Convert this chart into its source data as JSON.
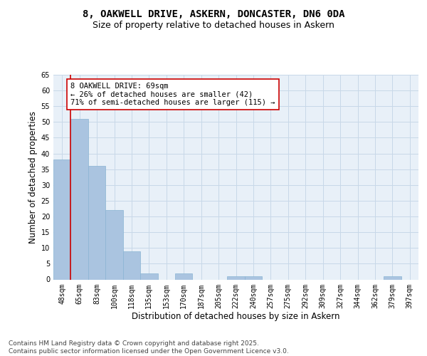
{
  "title_line1": "8, OAKWELL DRIVE, ASKERN, DONCASTER, DN6 0DA",
  "title_line2": "Size of property relative to detached houses in Askern",
  "xlabel": "Distribution of detached houses by size in Askern",
  "ylabel": "Number of detached properties",
  "categories": [
    "48sqm",
    "65sqm",
    "83sqm",
    "100sqm",
    "118sqm",
    "135sqm",
    "153sqm",
    "170sqm",
    "187sqm",
    "205sqm",
    "222sqm",
    "240sqm",
    "257sqm",
    "275sqm",
    "292sqm",
    "309sqm",
    "327sqm",
    "344sqm",
    "362sqm",
    "379sqm",
    "397sqm"
  ],
  "values": [
    38,
    51,
    36,
    22,
    9,
    2,
    0,
    2,
    0,
    0,
    1,
    1,
    0,
    0,
    0,
    0,
    0,
    0,
    0,
    1,
    0
  ],
  "bar_color": "#aac4e0",
  "bar_edge_color": "#8ab4d4",
  "vline_color": "#cc0000",
  "vline_x": 0.5,
  "annotation_text": "8 OAKWELL DRIVE: 69sqm\n← 26% of detached houses are smaller (42)\n71% of semi-detached houses are larger (115) →",
  "annotation_box_color": "#cc0000",
  "ylim": [
    0,
    65
  ],
  "yticks": [
    0,
    5,
    10,
    15,
    20,
    25,
    30,
    35,
    40,
    45,
    50,
    55,
    60,
    65
  ],
  "grid_color": "#c8d8e8",
  "background_color": "#e8f0f8",
  "footer_text": "Contains HM Land Registry data © Crown copyright and database right 2025.\nContains public sector information licensed under the Open Government Licence v3.0.",
  "title_fontsize": 10,
  "subtitle_fontsize": 9,
  "axis_label_fontsize": 8.5,
  "tick_fontsize": 7,
  "annotation_fontsize": 7.5,
  "footer_fontsize": 6.5
}
